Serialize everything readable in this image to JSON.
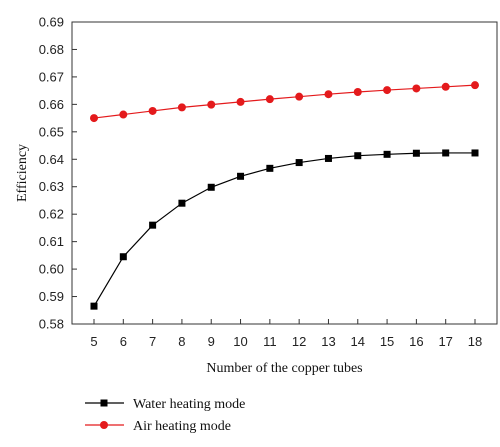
{
  "chart_data": {
    "type": "line",
    "xlabel": "Number of the copper tubes",
    "ylabel": "Efficiency",
    "xlim": [
      5,
      18
    ],
    "ylim": [
      0.58,
      0.69
    ],
    "x_ticks": [
      "5",
      "6",
      "7",
      "8",
      "9",
      "10",
      "11",
      "12",
      "13",
      "14",
      "15",
      "16",
      "17",
      "18"
    ],
    "y_ticks": [
      "0.58",
      "0.59",
      "0.60",
      "0.61",
      "0.62",
      "0.63",
      "0.64",
      "0.65",
      "0.66",
      "0.67",
      "0.68",
      "0.69"
    ],
    "x": [
      5,
      6,
      7,
      8,
      9,
      10,
      11,
      12,
      13,
      14,
      15,
      16,
      17,
      18
    ],
    "grid": false,
    "legend_position": "bottom-left",
    "series": [
      {
        "name": "Water heating mode",
        "color": "#000000",
        "marker": "square",
        "values": [
          0.5865,
          0.6045,
          0.616,
          0.624,
          0.6298,
          0.6338,
          0.6367,
          0.6388,
          0.6403,
          0.6413,
          0.6418,
          0.6422,
          0.6423,
          0.6423
        ]
      },
      {
        "name": "Air heating mode",
        "color": "#e41a1c",
        "marker": "circle",
        "values": [
          0.655,
          0.6563,
          0.6576,
          0.6589,
          0.6599,
          0.6609,
          0.6619,
          0.6628,
          0.6637,
          0.6645,
          0.6652,
          0.6658,
          0.6664,
          0.667
        ]
      }
    ]
  }
}
